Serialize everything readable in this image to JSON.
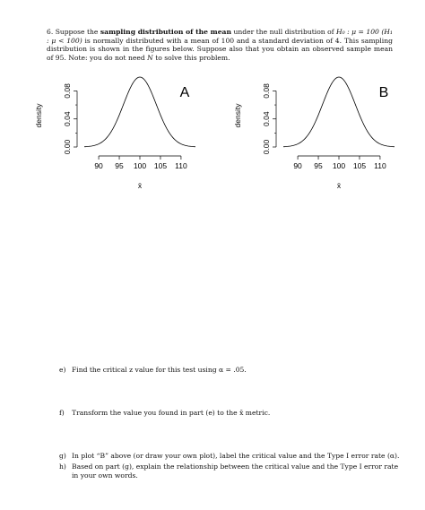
{
  "problem": {
    "number": "6.",
    "intro": "Suppose the",
    "bold1": "sampling distribution of the mean",
    "mid1": "under the null distribution of",
    "h0": "H₀ : μ = 100",
    "h1": "(H₁ : μ < 100)",
    "rest1": "is normally distributed with a mean of 100 and a standard deviation of 4. This sampling distribution is shown in the figures below. Suppose also that you obtain an observed sample mean of 95. Note: you do not need",
    "n_var": "N",
    "rest2": "to solve this problem."
  },
  "plots": [
    {
      "letter": "A",
      "ylabel": "density",
      "xlabel": "x̄",
      "yticks": [
        "0.00",
        "0.04",
        "0.08"
      ],
      "xticks": [
        "90",
        "95",
        "100",
        "105",
        "110"
      ]
    },
    {
      "letter": "B",
      "ylabel": "density",
      "xlabel": "x̄",
      "yticks": [
        "0.00",
        "0.04",
        "0.08"
      ],
      "xticks": [
        "90",
        "95",
        "100",
        "105",
        "110"
      ]
    }
  ],
  "questions": [
    {
      "label": "e)",
      "text": "Find the critical z value for this test using α = .05."
    },
    {
      "label": "f)",
      "text": "Transform the value you found in part (e) to the x̄ metric."
    },
    {
      "label": "g)",
      "text": "In plot “B” above (or draw your own plot), label the critical value and the Type I error rate (α)."
    },
    {
      "label": "h)",
      "text": "Based on part (g), explain the relationship between the critical value and the Type I error rate in your own words."
    }
  ]
}
